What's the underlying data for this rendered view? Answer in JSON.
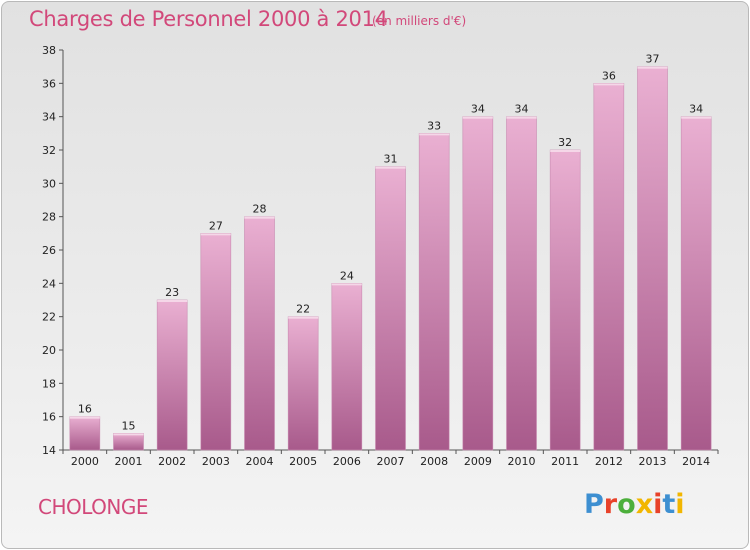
{
  "header": {
    "title": "Charges de Personnel 2000 à 2014",
    "subtitle": "(en milliers d'€)"
  },
  "footer": {
    "commune": "CHOLONGE",
    "logo": "Proxiti",
    "logo_colors": [
      "#3d8fd1",
      "#e8422a",
      "#4caf3b",
      "#f2b600",
      "#e8422a",
      "#3d8fd1",
      "#f2b600"
    ]
  },
  "colors": {
    "title": "#d2487a",
    "bar_top": "#eab0d2",
    "bar_bottom": "#a85a8b"
  },
  "chart_data": {
    "type": "bar",
    "title": "Charges de Personnel 2000 à 2014",
    "subtitle": "(en milliers d'€)",
    "xlabel": "",
    "ylabel": "",
    "categories": [
      "2000",
      "2001",
      "2002",
      "2003",
      "2004",
      "2005",
      "2006",
      "2007",
      "2008",
      "2009",
      "2010",
      "2011",
      "2012",
      "2013",
      "2014"
    ],
    "values": [
      16,
      15,
      23,
      27,
      28,
      22,
      24,
      31,
      33,
      34,
      34,
      32,
      36,
      37,
      34
    ],
    "ylim": [
      14,
      38
    ],
    "yticks": [
      14,
      16,
      18,
      20,
      22,
      24,
      26,
      28,
      30,
      32,
      34,
      36,
      38
    ],
    "grid": false,
    "data_labels": true
  }
}
